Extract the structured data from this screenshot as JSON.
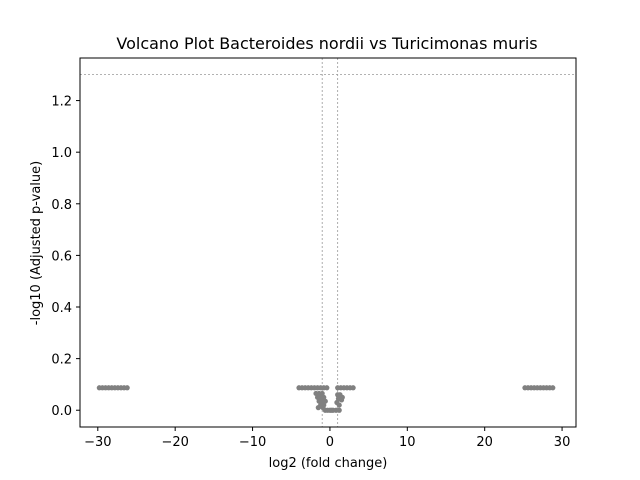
{
  "chart_data": {
    "type": "scatter",
    "title": "Volcano Plot Bacteroides nordii vs Turicimonas muris",
    "xlabel": "log2 (fold change)",
    "ylabel": "-log10 (Adjusted p-value)",
    "xlim": [
      -32.3,
      31.8
    ],
    "ylim": [
      -0.065,
      1.365
    ],
    "xticks": [
      -30,
      -20,
      -10,
      0,
      10,
      20,
      30
    ],
    "xtick_labels": [
      "−30",
      "−20",
      "−10",
      "0",
      "10",
      "20",
      "30"
    ],
    "yticks": [
      0.0,
      0.2,
      0.4,
      0.6,
      0.8,
      1.0,
      1.2
    ],
    "ytick_labels": [
      "0.0",
      "0.2",
      "0.4",
      "0.6",
      "0.8",
      "1.0",
      "1.2"
    ],
    "grid": false,
    "legend": "none",
    "point_color": "#808080",
    "threshold_color": "#999999",
    "thresholds": {
      "vertical": [
        -1,
        1
      ],
      "horizontal": [
        1.301
      ]
    },
    "series": [
      {
        "x": [
          -29.8,
          -29.4,
          -29.0,
          -28.6,
          -28.2,
          -27.8,
          -27.4,
          -27.0,
          -26.6,
          -26.2,
          -4.0,
          -3.6,
          -3.2,
          -2.8,
          -2.4,
          -2.0,
          -1.6,
          -1.2,
          -0.8,
          -0.4,
          -1.8,
          -1.4,
          -1.0,
          -1.6,
          -1.2,
          -0.8,
          -1.4,
          -1.0,
          -0.6,
          -1.2,
          -0.8,
          -1.5,
          -0.9,
          -0.3,
          0.0,
          0.4,
          0.8,
          1.2,
          -0.6,
          0.2,
          1.0,
          1.3,
          1.6,
          1.1,
          1.5,
          0.9,
          1.2,
          1.0,
          1.4,
          1.8,
          2.2,
          2.6,
          3.0,
          25.2,
          25.6,
          26.0,
          26.4,
          26.8,
          27.2,
          27.6,
          28.0,
          28.4,
          28.8
        ],
        "y": [
          0.087,
          0.087,
          0.087,
          0.087,
          0.087,
          0.087,
          0.087,
          0.087,
          0.087,
          0.087,
          0.087,
          0.087,
          0.087,
          0.087,
          0.087,
          0.087,
          0.087,
          0.087,
          0.087,
          0.087,
          0.065,
          0.065,
          0.065,
          0.05,
          0.05,
          0.05,
          0.035,
          0.035,
          0.035,
          0.02,
          0.02,
          0.01,
          0.01,
          0.0,
          0.0,
          0.0,
          0.0,
          0.0,
          0.0,
          0.0,
          0.06,
          0.06,
          0.05,
          0.045,
          0.04,
          0.03,
          0.02,
          0.087,
          0.087,
          0.087,
          0.087,
          0.087,
          0.087,
          0.087,
          0.087,
          0.087,
          0.087,
          0.087,
          0.087,
          0.087,
          0.087,
          0.087,
          0.087
        ]
      }
    ]
  }
}
